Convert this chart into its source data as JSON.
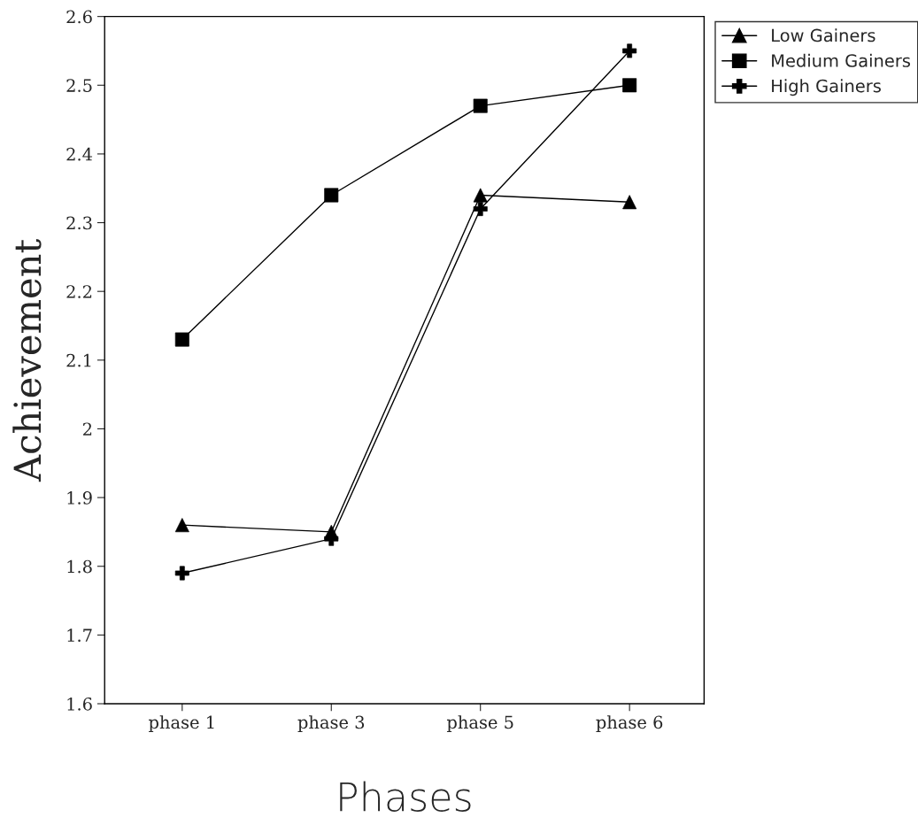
{
  "chart_data": {
    "type": "line",
    "xlabel": "Phases",
    "ylabel": "Achievement",
    "categories": [
      "phase 1",
      "phase 3",
      "phase 5",
      "phase 6"
    ],
    "series": [
      {
        "name": "Low Gainers",
        "color": "#000000",
        "marker": "triangle",
        "values": [
          1.86,
          1.85,
          2.34,
          2.33
        ]
      },
      {
        "name": "Medium Gainers",
        "color": "#000000",
        "marker": "square",
        "values": [
          2.13,
          2.34,
          2.47,
          2.5
        ]
      },
      {
        "name": "High Gainers",
        "color": "#000000",
        "marker": "cross",
        "values": [
          1.79,
          1.84,
          2.32,
          2.55
        ]
      }
    ],
    "ylim": [
      1.6,
      2.6
    ],
    "yticks": [
      1.6,
      1.7,
      1.8,
      1.9,
      {
        "value": 2.0,
        "label": "2"
      },
      2.1,
      2.2,
      2.3,
      2.4,
      2.5,
      2.6
    ],
    "grid": false,
    "legend": "top right",
    "line_style": "solid"
  }
}
